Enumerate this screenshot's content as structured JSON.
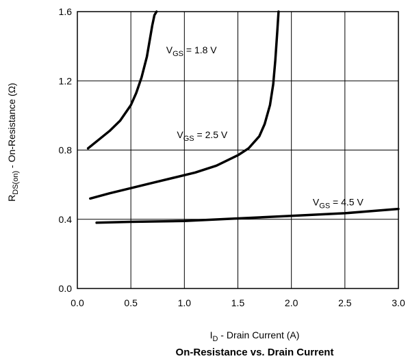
{
  "chart_data": {
    "type": "line",
    "title": "On-Resistance vs. Drain Current",
    "xlabel": {
      "main": "I",
      "sub": "D",
      "rest": " -  Drain Current (A)"
    },
    "ylabel": {
      "main": "R",
      "sub": "DS(on)",
      "rest": " - On-Resistance (Ω)"
    },
    "xlim": [
      0,
      3
    ],
    "ylim": [
      0,
      1.6
    ],
    "grid": true,
    "x_ticks": [
      0.0,
      0.5,
      1.0,
      1.5,
      2.0,
      2.5,
      3.0
    ],
    "x_tick_labels": [
      "0.0",
      "0.5",
      "1.0",
      "1.5",
      "2.0",
      "2.5",
      "3.0"
    ],
    "y_ticks": [
      0.0,
      0.4,
      0.8,
      1.2,
      1.6
    ],
    "y_tick_labels": [
      "0.0",
      "0.4",
      "0.8",
      "1.2",
      "1.6"
    ],
    "series": [
      {
        "label": {
          "main": "V",
          "sub": "GS",
          "rest": " = 1.8 V"
        },
        "label_at": [
          0.83,
          1.36
        ],
        "x": [
          0.1,
          0.2,
          0.3,
          0.4,
          0.5,
          0.55,
          0.6,
          0.65,
          0.7,
          0.72,
          0.74
        ],
        "y": [
          0.81,
          0.86,
          0.91,
          0.97,
          1.06,
          1.13,
          1.22,
          1.34,
          1.52,
          1.58,
          1.6
        ]
      },
      {
        "label": {
          "main": "V",
          "sub": "GS",
          "rest": " = 2.5 V"
        },
        "label_at": [
          0.93,
          0.87
        ],
        "x": [
          0.12,
          0.3,
          0.5,
          0.7,
          0.9,
          1.1,
          1.3,
          1.5,
          1.6,
          1.7,
          1.75,
          1.8,
          1.83,
          1.85,
          1.87,
          1.88
        ],
        "y": [
          0.52,
          0.55,
          0.58,
          0.61,
          0.64,
          0.67,
          0.71,
          0.77,
          0.81,
          0.88,
          0.95,
          1.06,
          1.18,
          1.32,
          1.5,
          1.6
        ]
      },
      {
        "label": {
          "main": "V",
          "sub": "GS",
          "rest": " = 4.5 V"
        },
        "label_at": [
          2.2,
          0.48
        ],
        "x": [
          0.18,
          0.5,
          1.0,
          1.5,
          2.0,
          2.5,
          2.8,
          3.0
        ],
        "y": [
          0.38,
          0.385,
          0.39,
          0.405,
          0.42,
          0.435,
          0.45,
          0.46
        ]
      }
    ]
  }
}
